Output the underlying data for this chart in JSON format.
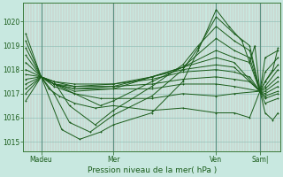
{
  "title": "Pression niveau de la mer( hPa )",
  "bg_color": "#c8e8e0",
  "line_color": "#1a5c1a",
  "yticks": [
    1015,
    1016,
    1017,
    1018,
    1019,
    1020
  ],
  "ylim": [
    1014.6,
    1020.8
  ],
  "xlim": [
    0,
    100
  ],
  "xtick_positions": [
    7,
    35,
    75,
    92
  ],
  "xtick_labels": [
    "Madeu",
    "Mer",
    "Ven",
    "Sam|"
  ],
  "vline_x": [
    7,
    35,
    75,
    92
  ],
  "n_vert_lines": 96,
  "series": [
    [
      1,
      1019.5,
      7,
      1017.7,
      15,
      1015.5,
      22,
      1015.1,
      30,
      1015.4,
      35,
      1015.7,
      50,
      1016.2,
      62,
      1017.5,
      68,
      1018.8,
      75,
      1020.5,
      80,
      1019.8,
      85,
      1019.2,
      88,
      1018.3,
      90,
      1019.0,
      92,
      1017.1,
      94,
      1017.5,
      97,
      1018.0,
      99,
      1018.9
    ],
    [
      1,
      1019.2,
      7,
      1017.7,
      12,
      1017.0,
      18,
      1015.8,
      26,
      1015.4,
      35,
      1016.1,
      50,
      1016.9,
      62,
      1018.0,
      68,
      1018.9,
      75,
      1020.2,
      82,
      1019.5,
      88,
      1019.0,
      92,
      1017.1,
      94,
      1018.5,
      99,
      1018.8
    ],
    [
      1,
      1018.9,
      7,
      1017.7,
      12,
      1017.5,
      18,
      1016.5,
      28,
      1015.7,
      35,
      1016.3,
      50,
      1017.3,
      62,
      1018.2,
      68,
      1019.0,
      75,
      1019.8,
      82,
      1019.2,
      88,
      1018.8,
      92,
      1017.1,
      94,
      1017.9,
      99,
      1018.5
    ],
    [
      1,
      1018.6,
      7,
      1017.7,
      12,
      1017.4,
      20,
      1017.0,
      30,
      1016.5,
      35,
      1016.7,
      50,
      1017.5,
      62,
      1018.1,
      75,
      1019.3,
      82,
      1018.8,
      88,
      1018.5,
      92,
      1017.1,
      94,
      1017.5,
      99,
      1018.2
    ],
    [
      1,
      1018.3,
      7,
      1017.7,
      12,
      1017.4,
      20,
      1017.1,
      35,
      1017.2,
      50,
      1017.7,
      62,
      1018.1,
      75,
      1018.8,
      82,
      1018.5,
      88,
      1018.3,
      92,
      1017.1,
      94,
      1017.3,
      99,
      1018.0
    ],
    [
      1,
      1018.0,
      7,
      1017.7,
      12,
      1017.4,
      20,
      1017.2,
      35,
      1017.3,
      50,
      1017.7,
      62,
      1018.1,
      75,
      1018.5,
      82,
      1018.3,
      92,
      1017.1,
      94,
      1017.2,
      99,
      1017.7
    ],
    [
      1,
      1017.8,
      7,
      1017.7,
      12,
      1017.5,
      20,
      1017.3,
      35,
      1017.4,
      50,
      1017.7,
      62,
      1018.0,
      75,
      1018.2,
      82,
      1018.1,
      92,
      1017.1,
      94,
      1017.1,
      99,
      1017.5
    ],
    [
      1,
      1017.6,
      7,
      1017.7,
      12,
      1017.5,
      20,
      1017.4,
      35,
      1017.4,
      50,
      1017.6,
      62,
      1017.9,
      75,
      1018.0,
      82,
      1017.9,
      88,
      1017.7,
      92,
      1017.1,
      94,
      1017.0,
      99,
      1017.3
    ],
    [
      1,
      1017.4,
      7,
      1017.7,
      12,
      1017.4,
      20,
      1017.3,
      35,
      1017.3,
      50,
      1017.4,
      62,
      1017.6,
      75,
      1017.7,
      82,
      1017.6,
      88,
      1017.5,
      92,
      1017.1,
      94,
      1016.9,
      99,
      1017.1
    ],
    [
      1,
      1017.2,
      7,
      1017.7,
      12,
      1017.4,
      20,
      1017.2,
      35,
      1017.2,
      50,
      1017.2,
      62,
      1017.4,
      75,
      1017.4,
      82,
      1017.3,
      92,
      1017.1,
      94,
      1016.8,
      99,
      1017.0
    ],
    [
      1,
      1017.0,
      7,
      1017.7,
      12,
      1017.3,
      20,
      1017.0,
      30,
      1016.8,
      35,
      1016.8,
      50,
      1016.8,
      62,
      1017.0,
      75,
      1016.9,
      82,
      1017.0,
      92,
      1017.1,
      94,
      1016.6,
      99,
      1016.8
    ],
    [
      1,
      1016.7,
      7,
      1017.7,
      10,
      1017.2,
      14,
      1016.9,
      20,
      1016.6,
      28,
      1016.4,
      35,
      1016.5,
      50,
      1016.3,
      62,
      1016.4,
      75,
      1016.2,
      82,
      1016.2,
      88,
      1016.0,
      92,
      1017.1,
      94,
      1016.2,
      97,
      1015.9,
      99,
      1016.2
    ]
  ]
}
